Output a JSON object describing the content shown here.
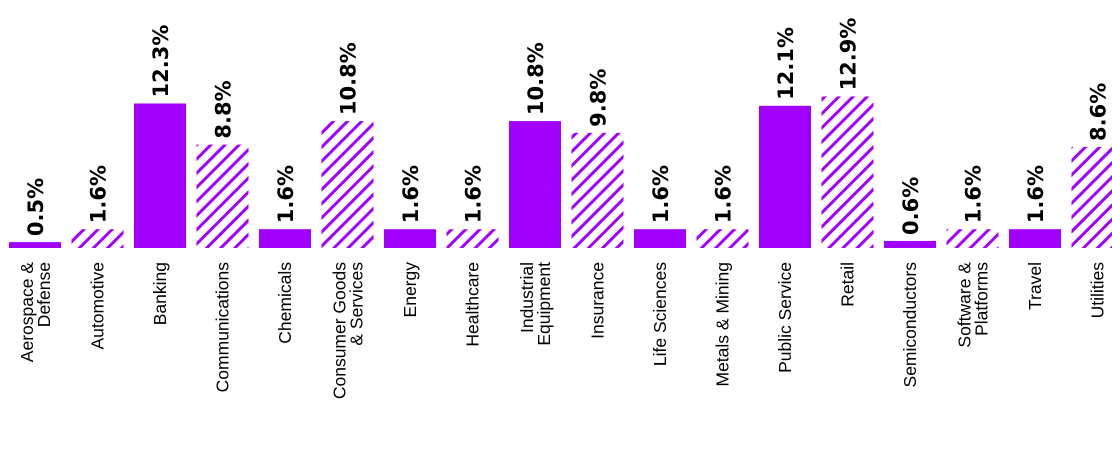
{
  "chart_data": {
    "type": "bar",
    "title": "",
    "xlabel": "",
    "ylabel": "",
    "ylim": [
      0,
      13
    ],
    "grid": false,
    "legend": "none",
    "colors": {
      "accent": "#A100FF",
      "background": "#FFFFFF"
    },
    "categories": [
      [
        "Aerospace &",
        "Defense"
      ],
      [
        "Automotive"
      ],
      [
        "Banking"
      ],
      [
        "Communications"
      ],
      [
        "Chemicals"
      ],
      [
        "Consumer Goods",
        "& Services"
      ],
      [
        "Energy"
      ],
      [
        "Healthcare"
      ],
      [
        "Industrial",
        "Equipment"
      ],
      [
        "Insurance"
      ],
      [
        "Life Sciences"
      ],
      [
        "Metals & Mining"
      ],
      [
        "Public Service"
      ],
      [
        "Retail"
      ],
      [
        "Semiconductors"
      ],
      [
        "Software &",
        "Platforms"
      ],
      [
        "Travel"
      ],
      [
        "Utilities"
      ]
    ],
    "values": [
      0.5,
      1.6,
      12.3,
      8.8,
      1.6,
      10.8,
      1.6,
      1.6,
      10.8,
      9.8,
      1.6,
      1.6,
      12.1,
      12.9,
      0.6,
      1.6,
      1.6,
      8.6
    ],
    "value_labels": [
      "0.5%",
      "1.6%",
      "12.3%",
      "8.8%",
      "1.6%",
      "10.8%",
      "1.6%",
      "1.6%",
      "10.8%",
      "9.8%",
      "1.6%",
      "1.6%",
      "12.1%",
      "12.9%",
      "0.6%",
      "1.6%",
      "1.6%",
      "8.6%"
    ],
    "bar_fill": [
      "solid",
      "hatched",
      "solid",
      "hatched",
      "solid",
      "hatched",
      "solid",
      "hatched",
      "solid",
      "hatched",
      "solid",
      "hatched",
      "solid",
      "hatched",
      "solid",
      "hatched",
      "solid",
      "hatched"
    ]
  }
}
